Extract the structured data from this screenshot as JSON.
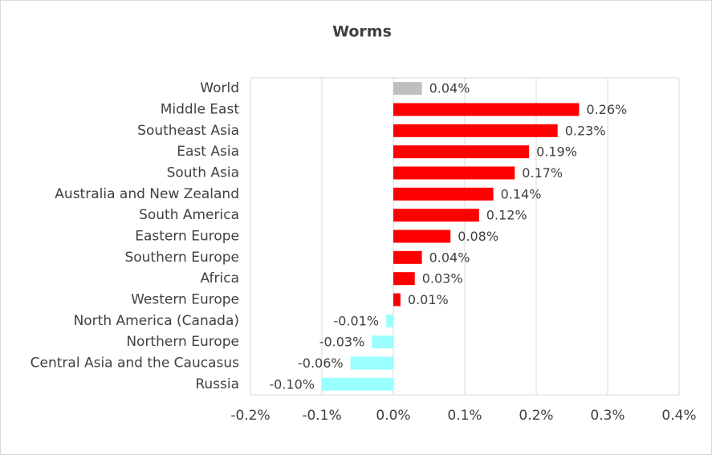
{
  "chart_data": {
    "type": "bar",
    "orientation": "horizontal",
    "title": "Worms",
    "categories": [
      "World",
      "Middle East",
      "Southeast Asia",
      "East Asia",
      "South Asia",
      "Australia and New Zealand",
      "South America",
      "Eastern Europe",
      "Southern Europe",
      "Africa",
      "Western Europe",
      "North America (Canada)",
      "Northern Europe",
      "Central Asia and the Caucasus",
      "Russia"
    ],
    "values": [
      0.04,
      0.26,
      0.23,
      0.19,
      0.17,
      0.14,
      0.12,
      0.08,
      0.04,
      0.03,
      0.01,
      -0.01,
      -0.03,
      -0.06,
      -0.1
    ],
    "value_labels": [
      "0.04%",
      "0.26%",
      "0.23%",
      "0.19%",
      "0.17%",
      "0.14%",
      "0.12%",
      "0.08%",
      "0.04%",
      "0.03%",
      "0.01%",
      "-0.01%",
      "-0.03%",
      "-0.06%",
      "-0.10%"
    ],
    "colors": [
      "#bfbfbf",
      "#ff0000",
      "#ff0000",
      "#ff0000",
      "#ff0000",
      "#ff0000",
      "#ff0000",
      "#ff0000",
      "#ff0000",
      "#ff0000",
      "#ff0000",
      "#99ffff",
      "#99ffff",
      "#99ffff",
      "#99ffff"
    ],
    "xlim": [
      -0.2,
      0.4
    ],
    "xticks": [
      {
        "value": -0.2,
        "label": "-0.2%"
      },
      {
        "value": -0.1,
        "label": "-0.1%"
      },
      {
        "value": 0,
        "label": "0.0%"
      },
      {
        "value": 0.1,
        "label": "0.1%"
      },
      {
        "value": 0.2,
        "label": "0.2%"
      },
      {
        "value": 0.3,
        "label": "0.3%"
      },
      {
        "value": 0.4,
        "label": "0.4%"
      }
    ],
    "grid": true
  }
}
